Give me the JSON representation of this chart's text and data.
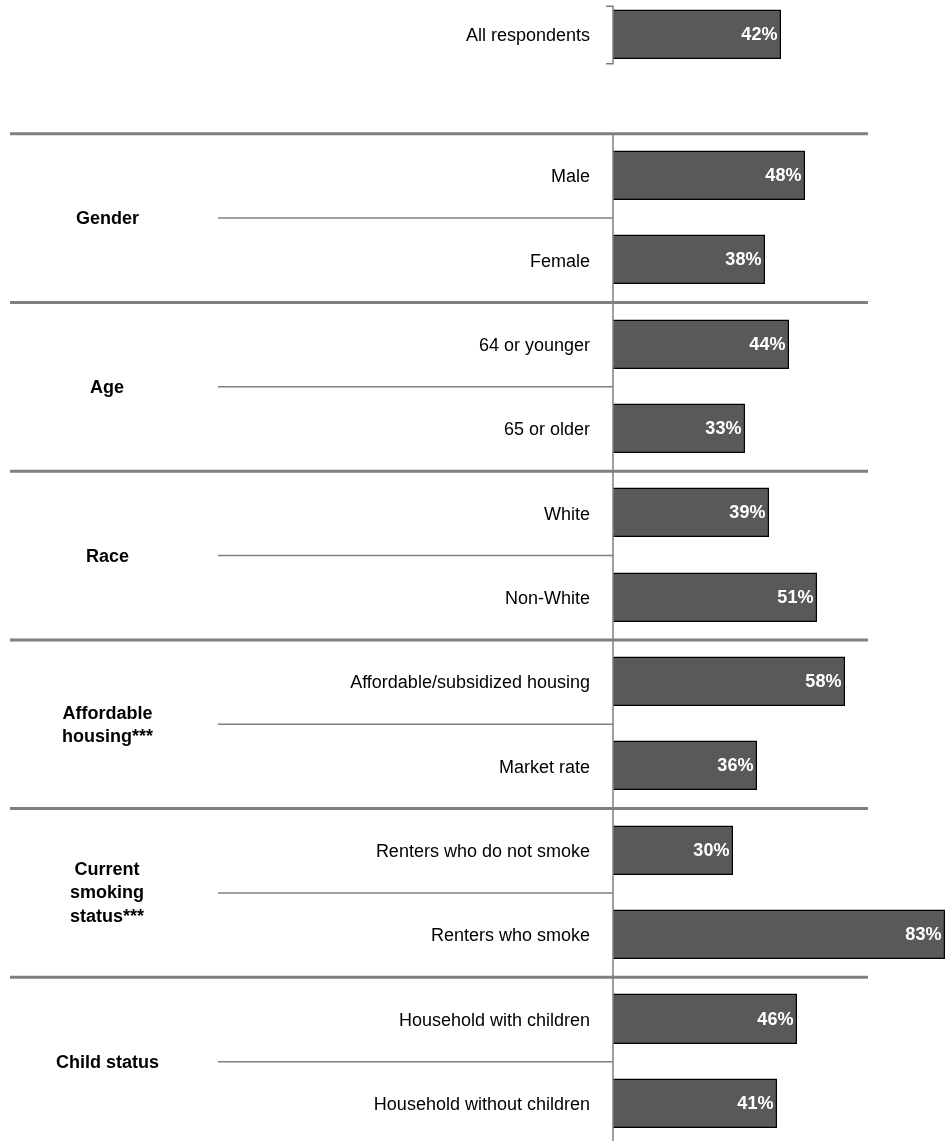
{
  "chart_data": {
    "type": "bar",
    "orientation": "horizontal",
    "categories": [
      "All respondents",
      "Male",
      "Female",
      "64 or younger",
      "65 or older",
      "White",
      "Non-White",
      "Affordable/subsidized housing",
      "Market rate",
      "Renters who do not smoke",
      "Renters who smoke",
      "Household with children",
      "Household without children"
    ],
    "values": [
      42,
      48,
      38,
      44,
      33,
      39,
      51,
      58,
      36,
      30,
      83,
      46,
      41
    ],
    "value_labels": [
      "42%",
      "48%",
      "38%",
      "44%",
      "33%",
      "39%",
      "51%",
      "58%",
      "36%",
      "30%",
      "83%",
      "46%",
      "41%"
    ],
    "color": "#595959",
    "annotations": [
      "Gender",
      "Age",
      "Race",
      "Affordable housing***",
      "Current smoking status***",
      "Child status"
    ]
  }
}
